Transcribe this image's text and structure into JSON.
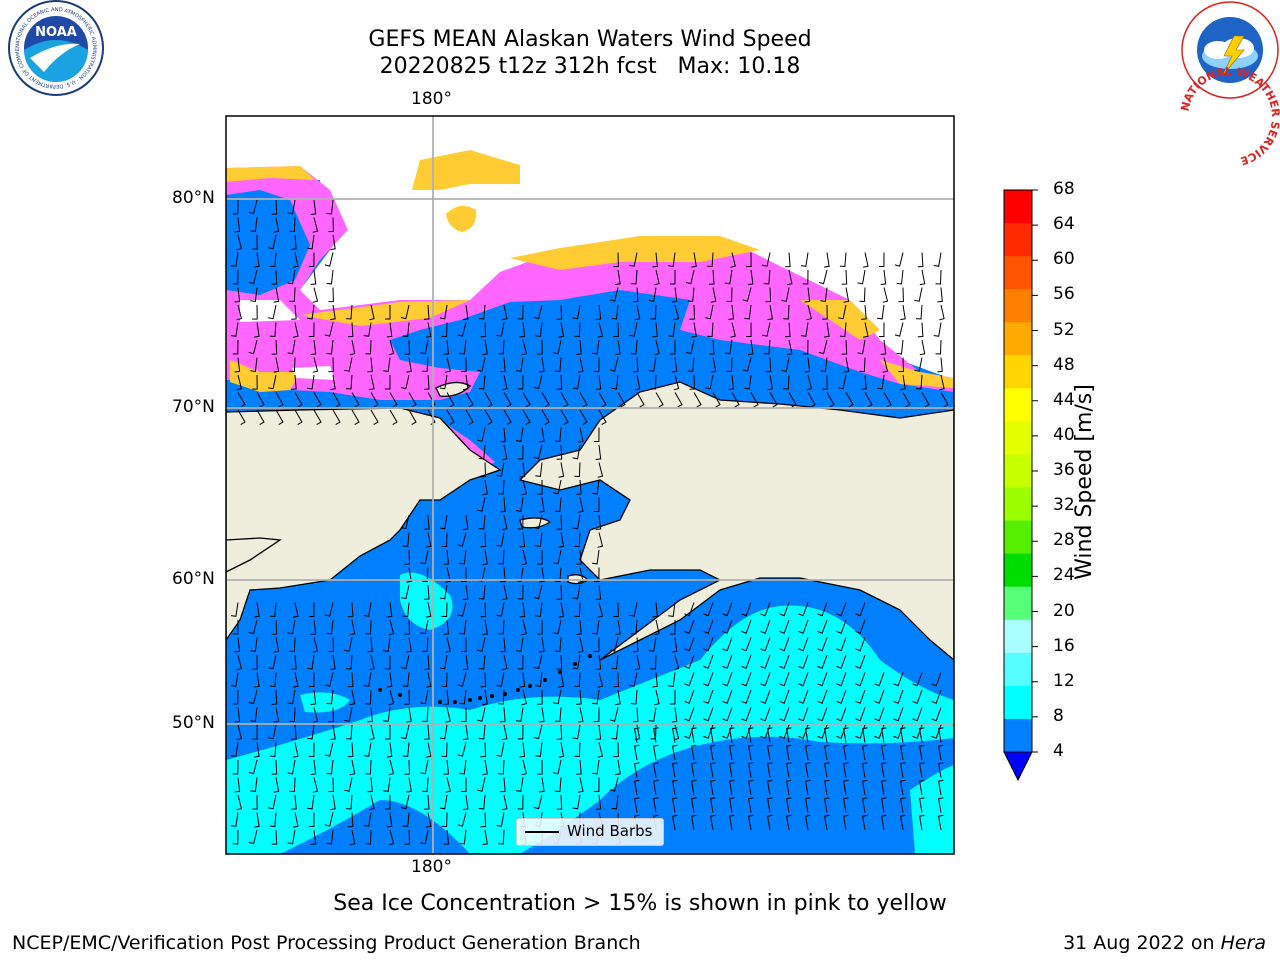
{
  "title": {
    "line1": "GEFS MEAN Alaskan Waters Wind Speed",
    "line2": "20220825 t12z 312h fcst   Max: 10.18"
  },
  "map": {
    "lon_label_top": "180°",
    "lon_label_bottom": "180°",
    "lat_labels": [
      "80°N",
      "70°N",
      "60°N",
      "50°N"
    ],
    "legend": "Wind Barbs"
  },
  "colorbar": {
    "label": "Wind Speed [m/s]",
    "ticks": [
      "68",
      "64",
      "60",
      "56",
      "52",
      "48",
      "44",
      "40",
      "36",
      "32",
      "28",
      "24",
      "20",
      "16",
      "12",
      "8",
      "4"
    ],
    "colors": [
      "#ff0000",
      "#ff2a00",
      "#ff5500",
      "#ff8000",
      "#ffaa00",
      "#ffd500",
      "#ffff00",
      "#e4ff00",
      "#c8ff00",
      "#9bff00",
      "#55ee00",
      "#00dd00",
      "#55ff77",
      "#aaffff",
      "#55ffff",
      "#00ffff",
      "#0080ff"
    ],
    "under_color": "#0000ff"
  },
  "colors": {
    "ocean_low": "#0080ff",
    "ocean_mid": "#00ffff",
    "land": "#efeddc",
    "ice_pink": "#ff66ff",
    "ice_yellow": "#ffcc33"
  },
  "footnote": "Sea Ice Concentration > 15% is shown in pink to yellow",
  "credit_left": "NCEP/EMC/Verification Post Processing Product Generation Branch",
  "credit_right_date": "31 Aug 2022 on ",
  "credit_right_machine": "Hera",
  "logos": {
    "left": "NOAA",
    "left_ring": "NATIONAL OCEANIC AND ATMOSPHERIC ADMINISTRATION · U.S. DEPARTMENT OF COMMERCE",
    "right_ring": "NATIONAL WEATHER SERVICE"
  }
}
